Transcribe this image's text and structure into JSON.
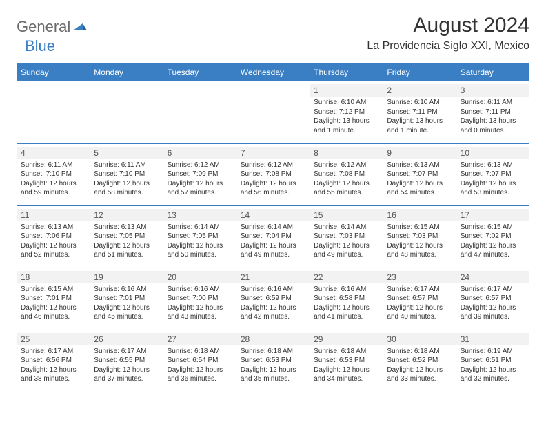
{
  "logo": {
    "general": "General",
    "blue": "Blue"
  },
  "title": "August 2024",
  "subtitle": "La Providencia Siglo XXI, Mexico",
  "colors": {
    "header_bg": "#3a7fc4",
    "header_text": "#ffffff",
    "text": "#333333",
    "day_number_bg": "#f2f2f2",
    "border": "#3a7fc4",
    "logo_gray": "#6b6b6b",
    "logo_blue": "#3a7fc4",
    "background": "#ffffff"
  },
  "font_sizes": {
    "title": 30,
    "subtitle": 16,
    "th": 12,
    "day_number": 12,
    "day_info": 10
  },
  "weekdays": [
    "Sunday",
    "Monday",
    "Tuesday",
    "Wednesday",
    "Thursday",
    "Friday",
    "Saturday"
  ],
  "weeks": [
    [
      null,
      null,
      null,
      null,
      {
        "num": "1",
        "sunrise": "Sunrise: 6:10 AM",
        "sunset": "Sunset: 7:12 PM",
        "daylight": "Daylight: 13 hours and 1 minute."
      },
      {
        "num": "2",
        "sunrise": "Sunrise: 6:10 AM",
        "sunset": "Sunset: 7:11 PM",
        "daylight": "Daylight: 13 hours and 1 minute."
      },
      {
        "num": "3",
        "sunrise": "Sunrise: 6:11 AM",
        "sunset": "Sunset: 7:11 PM",
        "daylight": "Daylight: 13 hours and 0 minutes."
      }
    ],
    [
      {
        "num": "4",
        "sunrise": "Sunrise: 6:11 AM",
        "sunset": "Sunset: 7:10 PM",
        "daylight": "Daylight: 12 hours and 59 minutes."
      },
      {
        "num": "5",
        "sunrise": "Sunrise: 6:11 AM",
        "sunset": "Sunset: 7:10 PM",
        "daylight": "Daylight: 12 hours and 58 minutes."
      },
      {
        "num": "6",
        "sunrise": "Sunrise: 6:12 AM",
        "sunset": "Sunset: 7:09 PM",
        "daylight": "Daylight: 12 hours and 57 minutes."
      },
      {
        "num": "7",
        "sunrise": "Sunrise: 6:12 AM",
        "sunset": "Sunset: 7:08 PM",
        "daylight": "Daylight: 12 hours and 56 minutes."
      },
      {
        "num": "8",
        "sunrise": "Sunrise: 6:12 AM",
        "sunset": "Sunset: 7:08 PM",
        "daylight": "Daylight: 12 hours and 55 minutes."
      },
      {
        "num": "9",
        "sunrise": "Sunrise: 6:13 AM",
        "sunset": "Sunset: 7:07 PM",
        "daylight": "Daylight: 12 hours and 54 minutes."
      },
      {
        "num": "10",
        "sunrise": "Sunrise: 6:13 AM",
        "sunset": "Sunset: 7:07 PM",
        "daylight": "Daylight: 12 hours and 53 minutes."
      }
    ],
    [
      {
        "num": "11",
        "sunrise": "Sunrise: 6:13 AM",
        "sunset": "Sunset: 7:06 PM",
        "daylight": "Daylight: 12 hours and 52 minutes."
      },
      {
        "num": "12",
        "sunrise": "Sunrise: 6:13 AM",
        "sunset": "Sunset: 7:05 PM",
        "daylight": "Daylight: 12 hours and 51 minutes."
      },
      {
        "num": "13",
        "sunrise": "Sunrise: 6:14 AM",
        "sunset": "Sunset: 7:05 PM",
        "daylight": "Daylight: 12 hours and 50 minutes."
      },
      {
        "num": "14",
        "sunrise": "Sunrise: 6:14 AM",
        "sunset": "Sunset: 7:04 PM",
        "daylight": "Daylight: 12 hours and 49 minutes."
      },
      {
        "num": "15",
        "sunrise": "Sunrise: 6:14 AM",
        "sunset": "Sunset: 7:03 PM",
        "daylight": "Daylight: 12 hours and 49 minutes."
      },
      {
        "num": "16",
        "sunrise": "Sunrise: 6:15 AM",
        "sunset": "Sunset: 7:03 PM",
        "daylight": "Daylight: 12 hours and 48 minutes."
      },
      {
        "num": "17",
        "sunrise": "Sunrise: 6:15 AM",
        "sunset": "Sunset: 7:02 PM",
        "daylight": "Daylight: 12 hours and 47 minutes."
      }
    ],
    [
      {
        "num": "18",
        "sunrise": "Sunrise: 6:15 AM",
        "sunset": "Sunset: 7:01 PM",
        "daylight": "Daylight: 12 hours and 46 minutes."
      },
      {
        "num": "19",
        "sunrise": "Sunrise: 6:16 AM",
        "sunset": "Sunset: 7:01 PM",
        "daylight": "Daylight: 12 hours and 45 minutes."
      },
      {
        "num": "20",
        "sunrise": "Sunrise: 6:16 AM",
        "sunset": "Sunset: 7:00 PM",
        "daylight": "Daylight: 12 hours and 43 minutes."
      },
      {
        "num": "21",
        "sunrise": "Sunrise: 6:16 AM",
        "sunset": "Sunset: 6:59 PM",
        "daylight": "Daylight: 12 hours and 42 minutes."
      },
      {
        "num": "22",
        "sunrise": "Sunrise: 6:16 AM",
        "sunset": "Sunset: 6:58 PM",
        "daylight": "Daylight: 12 hours and 41 minutes."
      },
      {
        "num": "23",
        "sunrise": "Sunrise: 6:17 AM",
        "sunset": "Sunset: 6:57 PM",
        "daylight": "Daylight: 12 hours and 40 minutes."
      },
      {
        "num": "24",
        "sunrise": "Sunrise: 6:17 AM",
        "sunset": "Sunset: 6:57 PM",
        "daylight": "Daylight: 12 hours and 39 minutes."
      }
    ],
    [
      {
        "num": "25",
        "sunrise": "Sunrise: 6:17 AM",
        "sunset": "Sunset: 6:56 PM",
        "daylight": "Daylight: 12 hours and 38 minutes."
      },
      {
        "num": "26",
        "sunrise": "Sunrise: 6:17 AM",
        "sunset": "Sunset: 6:55 PM",
        "daylight": "Daylight: 12 hours and 37 minutes."
      },
      {
        "num": "27",
        "sunrise": "Sunrise: 6:18 AM",
        "sunset": "Sunset: 6:54 PM",
        "daylight": "Daylight: 12 hours and 36 minutes."
      },
      {
        "num": "28",
        "sunrise": "Sunrise: 6:18 AM",
        "sunset": "Sunset: 6:53 PM",
        "daylight": "Daylight: 12 hours and 35 minutes."
      },
      {
        "num": "29",
        "sunrise": "Sunrise: 6:18 AM",
        "sunset": "Sunset: 6:53 PM",
        "daylight": "Daylight: 12 hours and 34 minutes."
      },
      {
        "num": "30",
        "sunrise": "Sunrise: 6:18 AM",
        "sunset": "Sunset: 6:52 PM",
        "daylight": "Daylight: 12 hours and 33 minutes."
      },
      {
        "num": "31",
        "sunrise": "Sunrise: 6:19 AM",
        "sunset": "Sunset: 6:51 PM",
        "daylight": "Daylight: 12 hours and 32 minutes."
      }
    ]
  ]
}
